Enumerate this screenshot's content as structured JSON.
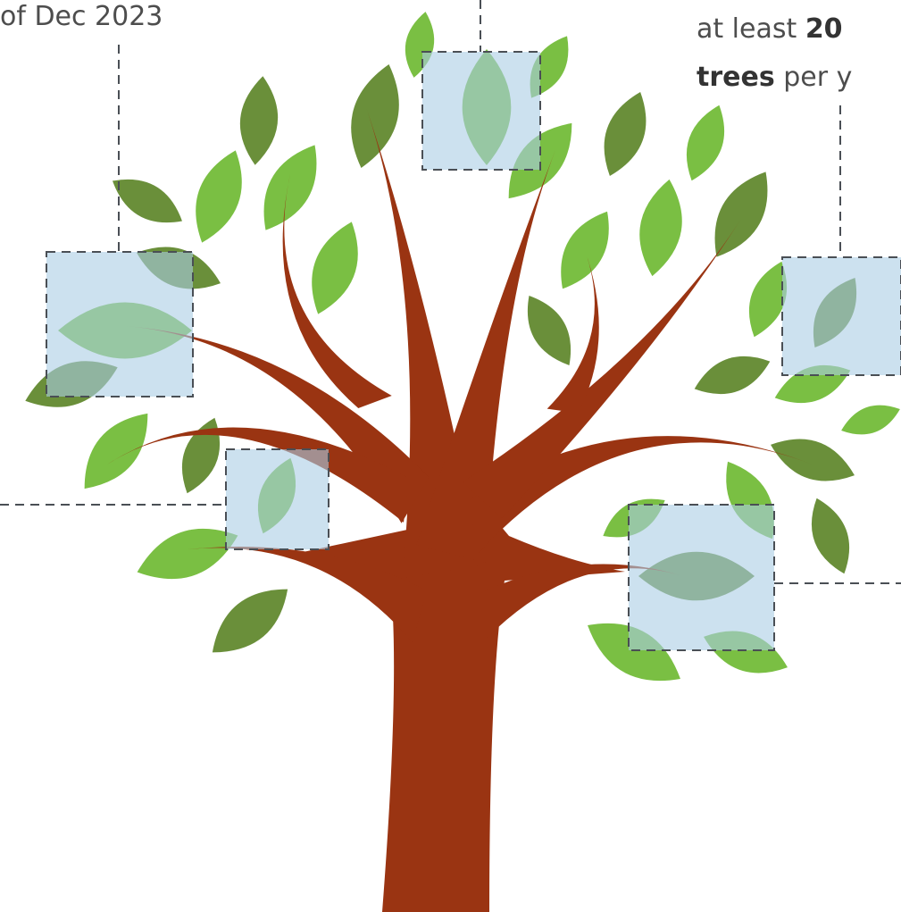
{
  "annotations": {
    "left_top": "of Dec 2023",
    "right_top": {
      "line1_prefix": "at least",
      "line1_bold": "20",
      "line2_bold": "trees",
      "line2_suffix": "per y"
    }
  }
}
